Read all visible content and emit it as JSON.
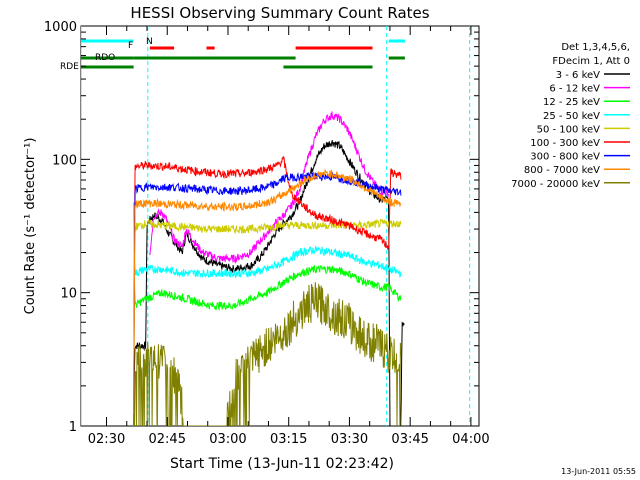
{
  "chart_data": {
    "type": "line",
    "title": "HESSI Observing Summary Count Rates",
    "xlabel": "Start Time (13-Jun-11 02:23:42)",
    "ylabel": "Count Rate (s⁻¹ detector⁻¹)",
    "y_scale": "log",
    "ylim": [
      1,
      1000
    ],
    "xlim_minutes": [
      "02:23:42",
      "04:02:00"
    ],
    "x_ticks": [
      "02:30",
      "02:45",
      "03:00",
      "03:15",
      "03:30",
      "03:45",
      "04:00"
    ],
    "y_ticks": [
      "1",
      "10",
      "100",
      "1000"
    ],
    "timestamp": "13-Jun-2011 05:55",
    "legend": {
      "header": [
        "Det 1,3,4,5,6,",
        "FDecim 1, Att 0"
      ],
      "placement": "right"
    },
    "series": [
      {
        "name": "3 - 6 keV",
        "color": "#000000",
        "points": [
          [
            0,
            1
          ],
          [
            13,
            1
          ],
          [
            13.3,
            4
          ],
          [
            16,
            4
          ],
          [
            16.3,
            33
          ],
          [
            18,
            38
          ],
          [
            20,
            35
          ],
          [
            21,
            30
          ],
          [
            23,
            24
          ],
          [
            25,
            20
          ],
          [
            26,
            28
          ],
          [
            28,
            22
          ],
          [
            30,
            18
          ],
          [
            34,
            16
          ],
          [
            38,
            15
          ],
          [
            42,
            16
          ],
          [
            44,
            18
          ],
          [
            46,
            22
          ],
          [
            48,
            28
          ],
          [
            50,
            33
          ],
          [
            52,
            38
          ],
          [
            54,
            48
          ],
          [
            56,
            70
          ],
          [
            58,
            100
          ],
          [
            60,
            125
          ],
          [
            62,
            135
          ],
          [
            64,
            125
          ],
          [
            66,
            100
          ],
          [
            68,
            80
          ],
          [
            70,
            65
          ],
          [
            72,
            55
          ],
          [
            74,
            50
          ],
          [
            76,
            50
          ],
          [
            76.3,
            1
          ],
          [
            79,
            1
          ],
          [
            79.3,
            6
          ],
          [
            80,
            6
          ]
        ]
      },
      {
        "name": "6 - 12 keV",
        "color": "#ff00ff",
        "points": [
          [
            17,
            20
          ],
          [
            18,
            38
          ],
          [
            20,
            40
          ],
          [
            21,
            36
          ],
          [
            23,
            25
          ],
          [
            25,
            22
          ],
          [
            26,
            30
          ],
          [
            28,
            24
          ],
          [
            30,
            20
          ],
          [
            34,
            18
          ],
          [
            38,
            18
          ],
          [
            42,
            20
          ],
          [
            44,
            24
          ],
          [
            46,
            28
          ],
          [
            48,
            33
          ],
          [
            50,
            38
          ],
          [
            52,
            45
          ],
          [
            54,
            60
          ],
          [
            56,
            100
          ],
          [
            58,
            150
          ],
          [
            60,
            195
          ],
          [
            62,
            215
          ],
          [
            64,
            200
          ],
          [
            66,
            165
          ],
          [
            68,
            120
          ],
          [
            70,
            85
          ],
          [
            72,
            68
          ],
          [
            74,
            58
          ],
          [
            76,
            55
          ]
        ]
      },
      {
        "name": "12 - 25 keV",
        "color": "#00ff00",
        "points": [
          [
            13,
            48
          ],
          [
            13.3,
            8
          ],
          [
            16,
            9
          ],
          [
            20,
            10
          ],
          [
            26,
            9
          ],
          [
            32,
            8
          ],
          [
            38,
            8
          ],
          [
            42,
            9
          ],
          [
            46,
            10
          ],
          [
            50,
            12
          ],
          [
            54,
            14
          ],
          [
            58,
            15
          ],
          [
            62,
            15
          ],
          [
            66,
            14
          ],
          [
            70,
            12
          ],
          [
            74,
            11
          ],
          [
            76,
            11
          ],
          [
            79,
            9
          ]
        ]
      },
      {
        "name": "25 - 50 keV",
        "color": "#00ffff",
        "points": [
          [
            13,
            50
          ],
          [
            13.3,
            14
          ],
          [
            16,
            15
          ],
          [
            20,
            15
          ],
          [
            26,
            14
          ],
          [
            32,
            14
          ],
          [
            38,
            14
          ],
          [
            42,
            14
          ],
          [
            46,
            15
          ],
          [
            50,
            17
          ],
          [
            54,
            20
          ],
          [
            58,
            21
          ],
          [
            62,
            20
          ],
          [
            66,
            19
          ],
          [
            70,
            17
          ],
          [
            74,
            16
          ],
          [
            76,
            15
          ],
          [
            79,
            14
          ]
        ]
      },
      {
        "name": "50 - 100 keV",
        "color": "#cccc00",
        "points": [
          [
            13,
            1
          ],
          [
            13.3,
            31
          ],
          [
            16,
            33
          ],
          [
            20,
            32
          ],
          [
            26,
            31
          ],
          [
            32,
            30
          ],
          [
            38,
            30
          ],
          [
            42,
            30
          ],
          [
            46,
            31
          ],
          [
            50,
            32
          ],
          [
            54,
            32
          ],
          [
            58,
            32
          ],
          [
            62,
            32
          ],
          [
            66,
            32
          ],
          [
            70,
            32
          ],
          [
            74,
            33
          ],
          [
            76,
            33
          ],
          [
            79,
            33
          ]
        ]
      },
      {
        "name": "100 - 300 keV",
        "color": "#ff0000",
        "points": [
          [
            13,
            1
          ],
          [
            13.3,
            88
          ],
          [
            16,
            90
          ],
          [
            22,
            88
          ],
          [
            28,
            82
          ],
          [
            34,
            78
          ],
          [
            40,
            78
          ],
          [
            44,
            82
          ],
          [
            48,
            88
          ],
          [
            50,
            100
          ],
          [
            52,
            55
          ],
          [
            54,
            48
          ],
          [
            56,
            42
          ],
          [
            58,
            38
          ],
          [
            62,
            35
          ],
          [
            66,
            32
          ],
          [
            70,
            28
          ],
          [
            74,
            25
          ],
          [
            76,
            22
          ],
          [
            76.5,
            80
          ],
          [
            79,
            75
          ]
        ]
      },
      {
        "name": "300 - 800 keV",
        "color": "#0000ff",
        "points": [
          [
            13,
            1
          ],
          [
            13.3,
            60
          ],
          [
            16,
            62
          ],
          [
            22,
            62
          ],
          [
            28,
            60
          ],
          [
            34,
            58
          ],
          [
            40,
            58
          ],
          [
            44,
            60
          ],
          [
            48,
            65
          ],
          [
            50,
            72
          ],
          [
            54,
            74
          ],
          [
            58,
            75
          ],
          [
            62,
            74
          ],
          [
            66,
            70
          ],
          [
            70,
            65
          ],
          [
            74,
            60
          ],
          [
            76,
            58
          ],
          [
            79,
            57
          ]
        ]
      },
      {
        "name": "800 - 7000 keV",
        "color": "#ff8800",
        "points": [
          [
            13,
            1
          ],
          [
            13.3,
            46
          ],
          [
            16,
            47
          ],
          [
            22,
            46
          ],
          [
            28,
            45
          ],
          [
            34,
            44
          ],
          [
            40,
            44
          ],
          [
            44,
            46
          ],
          [
            48,
            50
          ],
          [
            52,
            60
          ],
          [
            56,
            72
          ],
          [
            60,
            78
          ],
          [
            62,
            78
          ],
          [
            66,
            72
          ],
          [
            70,
            62
          ],
          [
            74,
            52
          ],
          [
            76,
            48
          ],
          [
            79,
            46
          ]
        ]
      },
      {
        "name": "7000 - 20000 keV",
        "color": "#808000",
        "points": [
          [
            13,
            1
          ],
          [
            13.3,
            2.8
          ],
          [
            16,
            3
          ],
          [
            20,
            3
          ],
          [
            24,
            2.2
          ],
          [
            26,
            1
          ],
          [
            36,
            1
          ],
          [
            38,
            2.2
          ],
          [
            42,
            3
          ],
          [
            46,
            4
          ],
          [
            50,
            5
          ],
          [
            54,
            7
          ],
          [
            56,
            8
          ],
          [
            58,
            8.5
          ],
          [
            60,
            8
          ],
          [
            62,
            7
          ],
          [
            66,
            6
          ],
          [
            70,
            4.5
          ],
          [
            74,
            4
          ],
          [
            76,
            3.5
          ],
          [
            79,
            3
          ]
        ]
      }
    ],
    "flags": {
      "N": {
        "label": "N",
        "color": "#00ffff",
        "segments": [
          [
            0,
            13
          ],
          [
            76,
            80
          ]
        ]
      },
      "F": {
        "label": "F",
        "color": "#ff0000",
        "segments": [
          [
            17,
            23
          ],
          [
            31,
            33
          ],
          [
            53,
            72
          ]
        ]
      },
      "RDO": {
        "label": "RDO",
        "color": "#008000",
        "segments": [
          [
            0,
            13
          ],
          [
            13,
            53
          ],
          [
            76,
            80
          ]
        ]
      },
      "RDE": {
        "label": "RDE",
        "color": "#008000",
        "segments": [
          [
            0,
            13
          ],
          [
            50,
            72
          ]
        ]
      }
    },
    "vlines_minutes": [
      0,
      16.5,
      75.5,
      96
    ]
  }
}
